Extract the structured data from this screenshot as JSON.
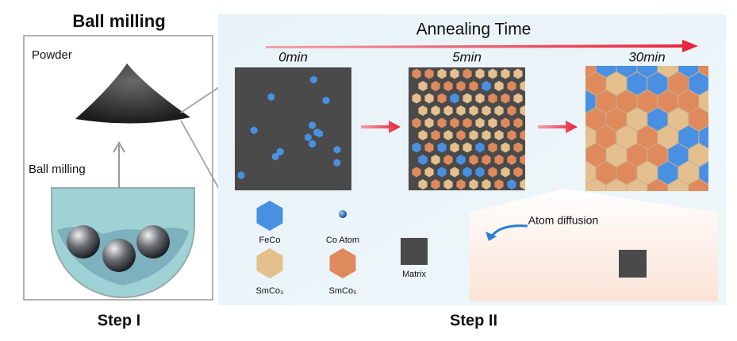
{
  "left": {
    "title": "Ball milling",
    "powder_label": "Powder",
    "milling_label": "Ball milling",
    "step": "Step I"
  },
  "right": {
    "axis_label": "Annealing Time",
    "stages": [
      "0min",
      "5min",
      "30min"
    ],
    "legend": [
      "FeCo",
      "Co Atom",
      "SmCo₃",
      "SmCo₅",
      "Matrix"
    ],
    "inset_label": "Atom diffusion",
    "step": "Step II"
  }
}
